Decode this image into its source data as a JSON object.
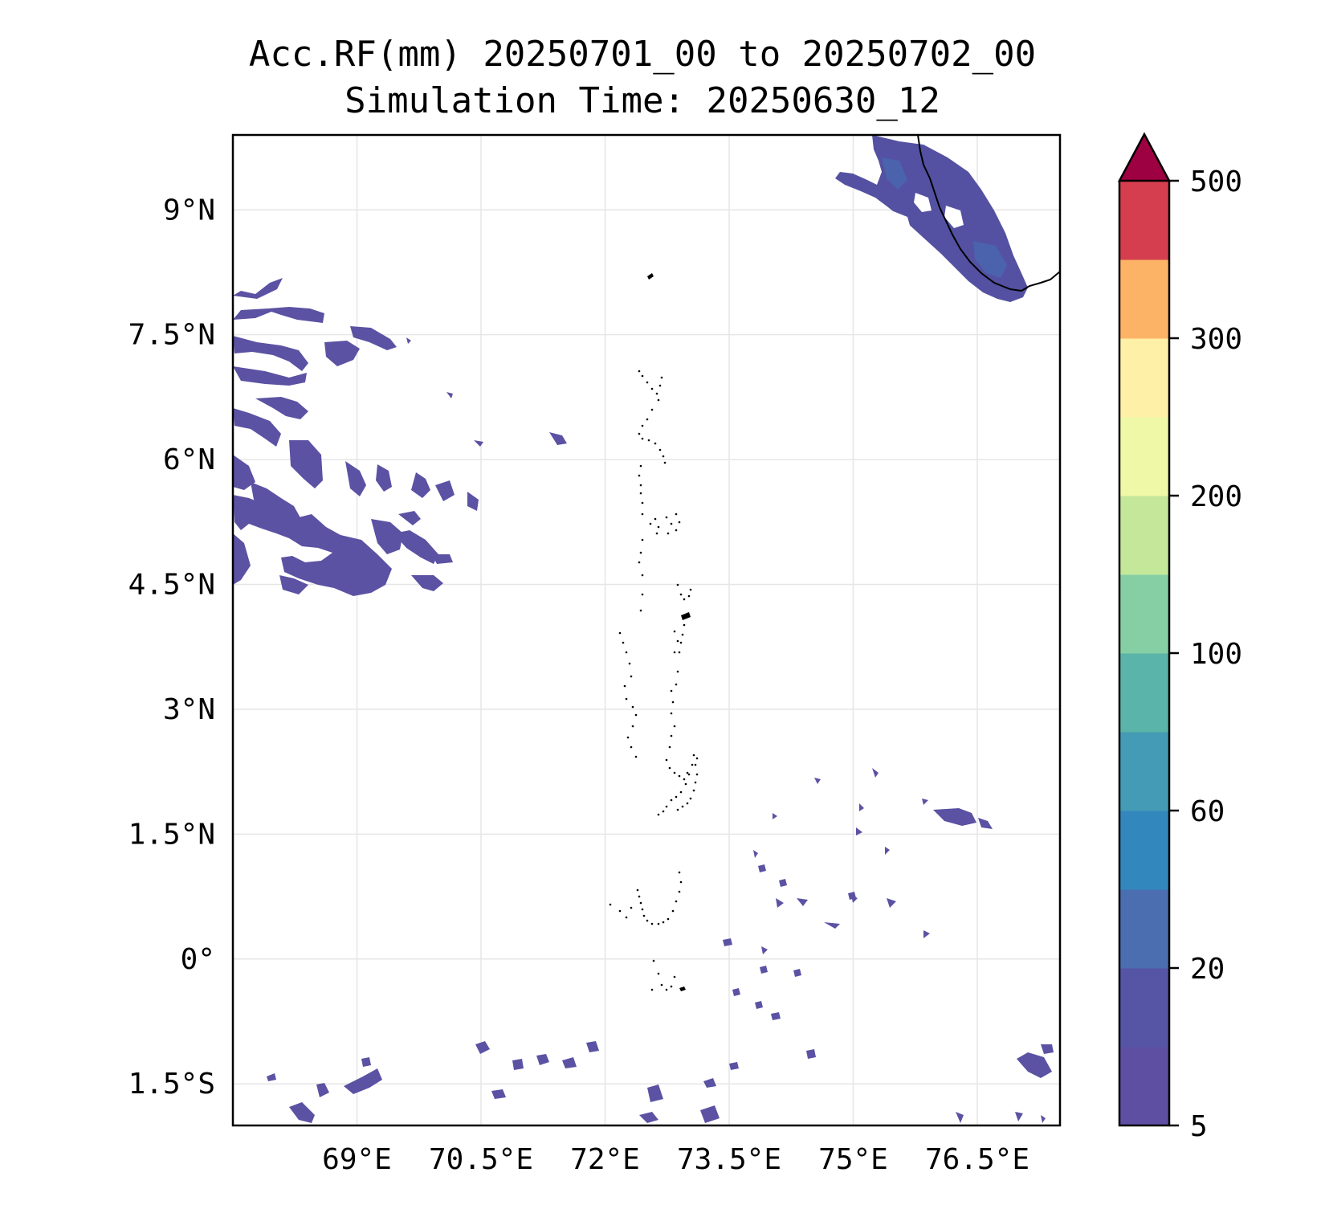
{
  "title": {
    "line1": "Acc.RF(mm) 20250701_00 to 20250702_00",
    "line2": "Simulation Time: 20250630_12"
  },
  "map": {
    "lon_range": [
      67.5,
      77.5
    ],
    "lat_range": [
      -2,
      9.9
    ],
    "lon_ticks": [
      69,
      70.5,
      72,
      73.5,
      75,
      76.5
    ],
    "lon_tick_labels": [
      "69°E",
      "70.5°E",
      "72°E",
      "73.5°E",
      "75°E",
      "76.5°E"
    ],
    "lat_ticks": [
      9,
      7.5,
      6,
      4.5,
      3,
      1.5,
      0,
      -1.5
    ],
    "lat_tick_labels": [
      "9°N",
      "7.5°N",
      "6°N",
      "4.5°N",
      "3°N",
      "1.5°N",
      "0°",
      "1.5°S"
    ],
    "gridlines": true
  },
  "colorbar": {
    "levels": [
      5,
      10,
      20,
      40,
      60,
      80,
      100,
      150,
      200,
      250,
      300,
      400,
      500
    ],
    "tick_labels": [
      "5",
      "20",
      "60",
      "100",
      "200",
      "300",
      "500"
    ],
    "tick_levels": [
      5,
      20,
      60,
      100,
      200,
      300,
      500
    ],
    "colors": [
      "#5e4fa2",
      "#5654a5",
      "#4a6eb0",
      "#3288bd",
      "#439bb5",
      "#5bb4a9",
      "#86cfa5",
      "#c5e79a",
      "#eff8a6",
      "#fff0a8",
      "#fdb365",
      "#d53e4f"
    ],
    "extend_color": "#9e0142",
    "extend": "max"
  },
  "rain_color": "#5b52a3"
}
